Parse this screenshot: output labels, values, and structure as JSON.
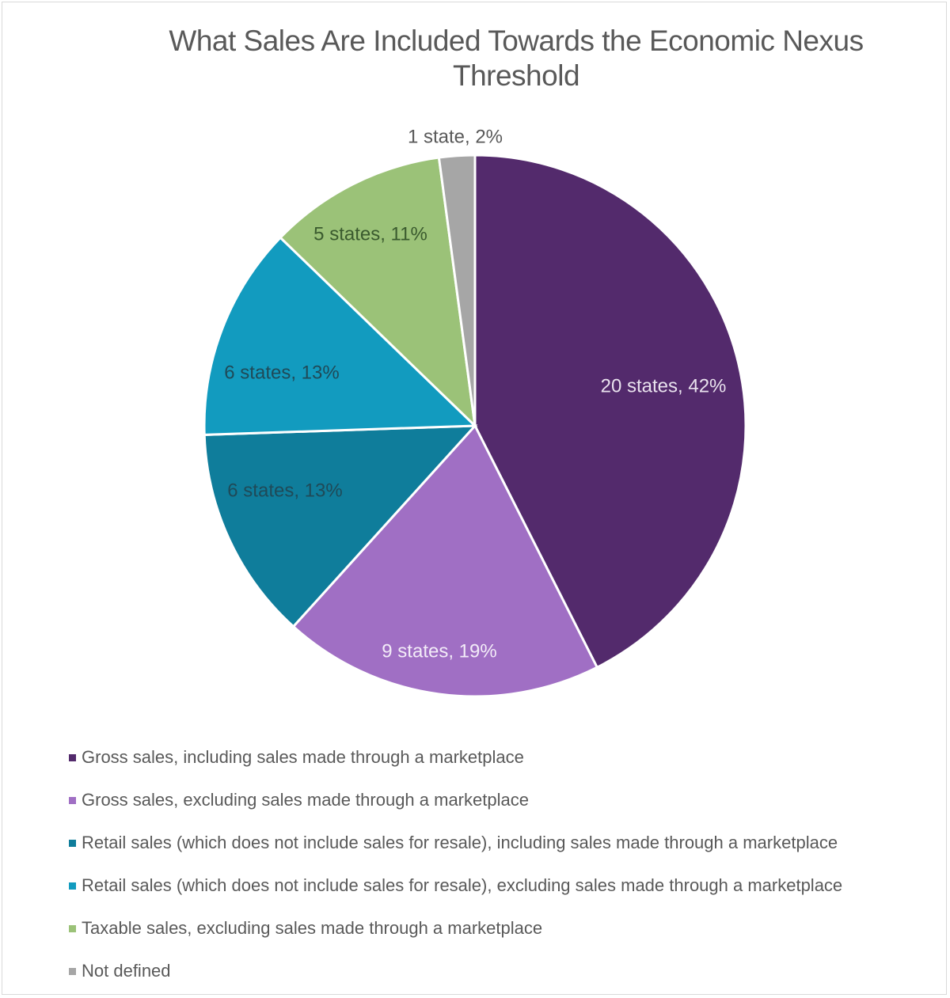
{
  "chart_data": {
    "type": "pie",
    "title": "What Sales Are Included Towards the Economic Nexus Threshold",
    "title_lines": [
      "What Sales Are Included Towards the Economic Nexus",
      "Threshold"
    ],
    "legend_position": "bottom",
    "slices": [
      {
        "name": "Gross sales, including sales made through a marketplace",
        "count": 20,
        "percent": 42,
        "label": "20 states, 42%",
        "color": "#532a6c",
        "label_color": "#e9e2ee"
      },
      {
        "name": "Gross sales, excluding sales made through a marketplace",
        "count": 9,
        "percent": 19,
        "label": "9 states, 19%",
        "color": "#a06fc4",
        "label_color": "#f3ecf8"
      },
      {
        "name": "Retail sales (which does not include sales for resale), including sales made through a marketplace",
        "count": 6,
        "percent": 13,
        "label": "6 states, 13%",
        "color": "#0f7d9b",
        "label_color": "#1f4a58"
      },
      {
        "name": "Retail sales (which does not include sales for resale), excluding sales made through a marketplace",
        "count": 6,
        "percent": 13,
        "label": "6 states, 13%",
        "color": "#129bbf",
        "label_color": "#1f4a58"
      },
      {
        "name": "Taxable sales, excluding sales made through a marketplace",
        "count": 5,
        "percent": 11,
        "label": "5 states, 11%",
        "color": "#9bc278",
        "label_color": "#3a5a2e"
      },
      {
        "name": "Not defined",
        "count": 1,
        "percent": 2,
        "label": "1 state, 2%",
        "color": "#a6a6a6",
        "label_color": "#595959"
      }
    ]
  },
  "legend": {
    "items": [
      {
        "label": "Gross sales, including sales made through a marketplace",
        "color": "#532a6c"
      },
      {
        "label": "Gross sales, excluding sales made through a marketplace",
        "color": "#a06fc4"
      },
      {
        "label": "Retail sales (which does not include sales for resale), including sales made through a marketplace",
        "color": "#0f7d9b"
      },
      {
        "label": "Retail sales (which does not include sales for resale), excluding sales made through a marketplace",
        "color": "#129bbf"
      },
      {
        "label": "Taxable sales, excluding sales made through a marketplace",
        "color": "#9bc278"
      },
      {
        "label": "Not defined",
        "color": "#a6a6a6"
      }
    ]
  }
}
